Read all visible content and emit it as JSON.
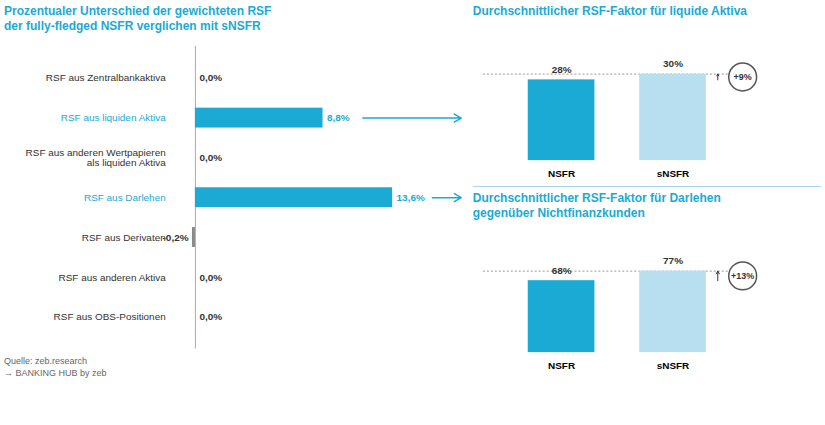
{
  "chart_data": [
    {
      "type": "bar",
      "orientation": "horizontal",
      "title": "Prozentualer Unterschied der gewichteten RSF\nder fully-fledged NSFR verglichen mit sNSFR",
      "categories": [
        "RSF aus Zentralbankaktiva",
        "RSF aus liquiden Aktiva",
        "RSF aus anderen Wertpapieren\nals liquiden Aktiva",
        "RSF aus Darlehen",
        "RSF aus Derivaten",
        "RSF aus anderen Aktiva",
        "RSF aus OBS-Positionen"
      ],
      "values": [
        0.0,
        8.8,
        0.0,
        13.6,
        -0.2,
        0.0,
        0.0
      ],
      "value_labels": [
        "0,0%",
        "8,8%",
        "0,0%",
        "13,6%",
        "-0,2%",
        "0,0%",
        "0,0%"
      ],
      "data_labels": true,
      "colors": [
        "#888888",
        "#1AAAD4",
        "#888888",
        "#1AAAD4",
        "#888888",
        "#888888",
        "#888888"
      ],
      "xlim": [
        -1.5,
        16
      ],
      "tick_labels": "y",
      "annotations": [
        "Quelle: zeb.research",
        "→ BANKING HUB  by zeb"
      ]
    },
    {
      "type": "bar",
      "title": "Durchschnittlicher RSF-Faktor für liquide Aktiva",
      "categories": [
        "NSFR",
        "sNSFR"
      ],
      "values": [
        28,
        30
      ],
      "value_labels": [
        "28%",
        "30%"
      ],
      "data_labels": true,
      "colors": [
        "#1AAAD4",
        "#B8DFF0"
      ],
      "ylim": [
        0,
        42
      ],
      "tick_labels": "x",
      "annotations": [
        "+9%"
      ]
    },
    {
      "type": "bar",
      "title": "Durchschnittlicher RSF-Faktor für Darlehen\ngegenüber Nichtfinanzkunden",
      "categories": [
        "NSFR",
        "sNSFR"
      ],
      "values": [
        68,
        77
      ],
      "value_labels": [
        "68%",
        "77%"
      ],
      "data_labels": true,
      "colors": [
        "#1AAAD4",
        "#B8DFF0"
      ],
      "ylim": [
        0,
        105
      ],
      "tick_labels": "x",
      "annotations": [
        "+13%"
      ]
    }
  ]
}
